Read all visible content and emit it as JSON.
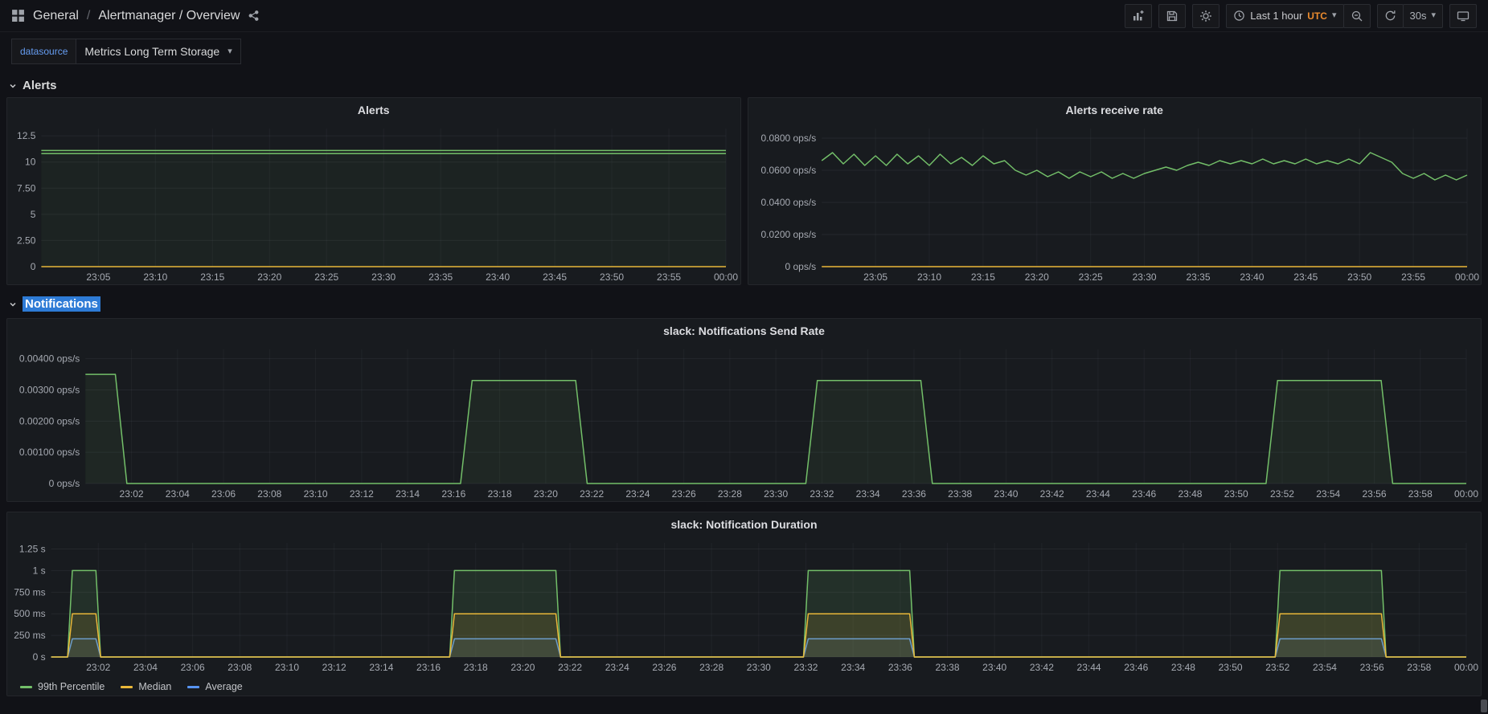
{
  "nav": {
    "breadcrumb": {
      "root": "General",
      "separator": "/",
      "current": "Alertmanager / Overview"
    },
    "time_range": {
      "label": "Last 1 hour",
      "timezone": "UTC"
    },
    "refresh_interval": "30s"
  },
  "submenu": {
    "variable_label": "datasource",
    "variable_value": "Metrics Long Term Storage"
  },
  "sections": {
    "alerts": "Alerts",
    "notifications": "Notifications"
  },
  "icons": {
    "caret_down": "▾"
  },
  "colors": {
    "green": "#73bf69",
    "yellow": "#eab839",
    "blue": "#5794f2",
    "selection_blue": "#2e7bd6",
    "variable_label_blue": "#669df2",
    "utc_orange": "#eb8b2e",
    "panel_bg": "#181b1f",
    "page_bg": "#111217"
  },
  "chart_data": [
    {
      "type": "line",
      "title": "Alerts",
      "x_range": [
        0,
        60
      ],
      "y_range": [
        0,
        13.2
      ],
      "y_ticks": [
        {
          "y": 0,
          "label": "0"
        },
        {
          "y": 2.5,
          "label": "2.50"
        },
        {
          "y": 5,
          "label": "5"
        },
        {
          "y": 7.5,
          "label": "7.50"
        },
        {
          "y": 10,
          "label": "10"
        },
        {
          "y": 12.5,
          "label": "12.5"
        }
      ],
      "x_ticks": [
        {
          "x": 5,
          "label": "23:05"
        },
        {
          "x": 10,
          "label": "23:10"
        },
        {
          "x": 15,
          "label": "23:15"
        },
        {
          "x": 20,
          "label": "23:20"
        },
        {
          "x": 25,
          "label": "23:25"
        },
        {
          "x": 30,
          "label": "23:30"
        },
        {
          "x": 35,
          "label": "23:35"
        },
        {
          "x": 40,
          "label": "23:40"
        },
        {
          "x": 45,
          "label": "23:45"
        },
        {
          "x": 50,
          "label": "23:50"
        },
        {
          "x": 55,
          "label": "23:55"
        },
        {
          "x": 60,
          "label": "00:00"
        }
      ],
      "series": [
        {
          "color": "#eab839",
          "fill": false,
          "points": [
            [
              0,
              0
            ],
            [
              60,
              0
            ]
          ]
        },
        {
          "color": "#73bf69",
          "fill": true,
          "fill_opacity": 0.05,
          "points": [
            [
              0,
              11.1
            ],
            [
              60,
              11.1
            ]
          ]
        },
        {
          "color": "#73bf69",
          "fill": false,
          "points": [
            [
              0,
              10.8
            ],
            [
              60,
              10.8
            ]
          ]
        }
      ]
    },
    {
      "type": "line",
      "title": "Alerts receive rate",
      "x_range": [
        0,
        60
      ],
      "y_range": [
        0,
        0.086
      ],
      "y_ticks": [
        {
          "y": 0,
          "label": "0 ops/s"
        },
        {
          "y": 0.02,
          "label": "0.0200 ops/s"
        },
        {
          "y": 0.04,
          "label": "0.0400 ops/s"
        },
        {
          "y": 0.06,
          "label": "0.0600 ops/s"
        },
        {
          "y": 0.08,
          "label": "0.0800 ops/s"
        }
      ],
      "x_ticks": [
        {
          "x": 5,
          "label": "23:05"
        },
        {
          "x": 10,
          "label": "23:10"
        },
        {
          "x": 15,
          "label": "23:15"
        },
        {
          "x": 20,
          "label": "23:20"
        },
        {
          "x": 25,
          "label": "23:25"
        },
        {
          "x": 30,
          "label": "23:30"
        },
        {
          "x": 35,
          "label": "23:35"
        },
        {
          "x": 40,
          "label": "23:40"
        },
        {
          "x": 45,
          "label": "23:45"
        },
        {
          "x": 50,
          "label": "23:50"
        },
        {
          "x": 55,
          "label": "23:55"
        },
        {
          "x": 60,
          "label": "00:00"
        }
      ],
      "series": [
        {
          "color": "#eab839",
          "fill": false,
          "points": [
            [
              0,
              0
            ],
            [
              60,
              0
            ]
          ]
        },
        {
          "color": "#73bf69",
          "fill": false,
          "points": [
            [
              0,
              0.066
            ],
            [
              1,
              0.071
            ],
            [
              2,
              0.064
            ],
            [
              3,
              0.07
            ],
            [
              4,
              0.063
            ],
            [
              5,
              0.069
            ],
            [
              6,
              0.063
            ],
            [
              7,
              0.07
            ],
            [
              8,
              0.064
            ],
            [
              9,
              0.069
            ],
            [
              10,
              0.063
            ],
            [
              11,
              0.07
            ],
            [
              12,
              0.064
            ],
            [
              13,
              0.068
            ],
            [
              14,
              0.063
            ],
            [
              15,
              0.069
            ],
            [
              16,
              0.064
            ],
            [
              17,
              0.066
            ],
            [
              18,
              0.06
            ],
            [
              19,
              0.057
            ],
            [
              20,
              0.06
            ],
            [
              21,
              0.056
            ],
            [
              22,
              0.059
            ],
            [
              23,
              0.055
            ],
            [
              24,
              0.059
            ],
            [
              25,
              0.056
            ],
            [
              26,
              0.059
            ],
            [
              27,
              0.055
            ],
            [
              28,
              0.058
            ],
            [
              29,
              0.055
            ],
            [
              30,
              0.058
            ],
            [
              31,
              0.06
            ],
            [
              32,
              0.062
            ],
            [
              33,
              0.06
            ],
            [
              34,
              0.063
            ],
            [
              35,
              0.065
            ],
            [
              36,
              0.063
            ],
            [
              37,
              0.066
            ],
            [
              38,
              0.064
            ],
            [
              39,
              0.066
            ],
            [
              40,
              0.064
            ],
            [
              41,
              0.067
            ],
            [
              42,
              0.064
            ],
            [
              43,
              0.066
            ],
            [
              44,
              0.064
            ],
            [
              45,
              0.067
            ],
            [
              46,
              0.064
            ],
            [
              47,
              0.066
            ],
            [
              48,
              0.064
            ],
            [
              49,
              0.067
            ],
            [
              50,
              0.064
            ],
            [
              51,
              0.071
            ],
            [
              52,
              0.068
            ],
            [
              53,
              0.065
            ],
            [
              54,
              0.058
            ],
            [
              55,
              0.055
            ],
            [
              56,
              0.058
            ],
            [
              57,
              0.054
            ],
            [
              58,
              0.057
            ],
            [
              59,
              0.054
            ],
            [
              60,
              0.057
            ]
          ]
        }
      ]
    },
    {
      "type": "line",
      "title": "slack: Notifications Send Rate",
      "x_range": [
        0,
        60
      ],
      "y_range": [
        0,
        0.0043
      ],
      "y_ticks": [
        {
          "y": 0,
          "label": "0 ops/s"
        },
        {
          "y": 0.001,
          "label": "0.00100 ops/s"
        },
        {
          "y": 0.002,
          "label": "0.00200 ops/s"
        },
        {
          "y": 0.003,
          "label": "0.00300 ops/s"
        },
        {
          "y": 0.004,
          "label": "0.00400 ops/s"
        }
      ],
      "x_ticks": [
        {
          "x": 2,
          "label": "23:02"
        },
        {
          "x": 4,
          "label": "23:04"
        },
        {
          "x": 6,
          "label": "23:06"
        },
        {
          "x": 8,
          "label": "23:08"
        },
        {
          "x": 10,
          "label": "23:10"
        },
        {
          "x": 12,
          "label": "23:12"
        },
        {
          "x": 14,
          "label": "23:14"
        },
        {
          "x": 16,
          "label": "23:16"
        },
        {
          "x": 18,
          "label": "23:18"
        },
        {
          "x": 20,
          "label": "23:20"
        },
        {
          "x": 22,
          "label": "23:22"
        },
        {
          "x": 24,
          "label": "23:24"
        },
        {
          "x": 26,
          "label": "23:26"
        },
        {
          "x": 28,
          "label": "23:28"
        },
        {
          "x": 30,
          "label": "23:30"
        },
        {
          "x": 32,
          "label": "23:32"
        },
        {
          "x": 34,
          "label": "23:34"
        },
        {
          "x": 36,
          "label": "23:36"
        },
        {
          "x": 38,
          "label": "23:38"
        },
        {
          "x": 40,
          "label": "23:40"
        },
        {
          "x": 42,
          "label": "23:42"
        },
        {
          "x": 44,
          "label": "23:44"
        },
        {
          "x": 46,
          "label": "23:46"
        },
        {
          "x": 48,
          "label": "23:48"
        },
        {
          "x": 50,
          "label": "23:50"
        },
        {
          "x": 52,
          "label": "23:52"
        },
        {
          "x": 54,
          "label": "23:54"
        },
        {
          "x": 56,
          "label": "23:56"
        },
        {
          "x": 58,
          "label": "23:58"
        },
        {
          "x": 60,
          "label": "00:00"
        }
      ],
      "series": [
        {
          "color": "#73bf69",
          "fill": true,
          "fill_opacity": 0.08,
          "points": [
            [
              0,
              0.0035
            ],
            [
              1.3,
              0.0035
            ],
            [
              1.8,
              0
            ],
            [
              16.3,
              0
            ],
            [
              16.8,
              0.0033
            ],
            [
              21.3,
              0.0033
            ],
            [
              21.8,
              0
            ],
            [
              31.3,
              0
            ],
            [
              31.8,
              0.0033
            ],
            [
              36.3,
              0.0033
            ],
            [
              36.8,
              0
            ],
            [
              51.3,
              0
            ],
            [
              51.8,
              0.0033
            ],
            [
              56.3,
              0.0033
            ],
            [
              56.8,
              0
            ],
            [
              60,
              0
            ]
          ]
        }
      ]
    },
    {
      "type": "line",
      "title": "slack: Notification Duration",
      "x_range": [
        0,
        60
      ],
      "y_range": [
        0,
        1.32
      ],
      "y_ticks": [
        {
          "y": 0,
          "label": "0 s"
        },
        {
          "y": 0.25,
          "label": "250 ms"
        },
        {
          "y": 0.5,
          "label": "500 ms"
        },
        {
          "y": 0.75,
          "label": "750 ms"
        },
        {
          "y": 1,
          "label": "1 s"
        },
        {
          "y": 1.25,
          "label": "1.25 s"
        }
      ],
      "x_ticks": [
        {
          "x": 2,
          "label": "23:02"
        },
        {
          "x": 4,
          "label": "23:04"
        },
        {
          "x": 6,
          "label": "23:06"
        },
        {
          "x": 8,
          "label": "23:08"
        },
        {
          "x": 10,
          "label": "23:10"
        },
        {
          "x": 12,
          "label": "23:12"
        },
        {
          "x": 14,
          "label": "23:14"
        },
        {
          "x": 16,
          "label": "23:16"
        },
        {
          "x": 18,
          "label": "23:18"
        },
        {
          "x": 20,
          "label": "23:20"
        },
        {
          "x": 22,
          "label": "23:22"
        },
        {
          "x": 24,
          "label": "23:24"
        },
        {
          "x": 26,
          "label": "23:26"
        },
        {
          "x": 28,
          "label": "23:28"
        },
        {
          "x": 30,
          "label": "23:30"
        },
        {
          "x": 32,
          "label": "23:32"
        },
        {
          "x": 34,
          "label": "23:34"
        },
        {
          "x": 36,
          "label": "23:36"
        },
        {
          "x": 38,
          "label": "23:38"
        },
        {
          "x": 40,
          "label": "23:40"
        },
        {
          "x": 42,
          "label": "23:42"
        },
        {
          "x": 44,
          "label": "23:44"
        },
        {
          "x": 46,
          "label": "23:46"
        },
        {
          "x": 48,
          "label": "23:48"
        },
        {
          "x": 50,
          "label": "23:50"
        },
        {
          "x": 52,
          "label": "23:52"
        },
        {
          "x": 54,
          "label": "23:54"
        },
        {
          "x": 56,
          "label": "23:56"
        },
        {
          "x": 58,
          "label": "23:58"
        },
        {
          "x": 60,
          "label": "00:00"
        }
      ],
      "series": [
        {
          "name": "Average",
          "color": "#5794f2",
          "fill": true,
          "fill_opacity": 0.1,
          "points": [
            [
              0,
              0
            ],
            [
              0.7,
              0
            ],
            [
              0.9,
              0.21
            ],
            [
              1.9,
              0.21
            ],
            [
              2.1,
              0
            ],
            [
              16.9,
              0
            ],
            [
              17.1,
              0.21
            ],
            [
              21.4,
              0.21
            ],
            [
              21.6,
              0
            ],
            [
              31.9,
              0
            ],
            [
              32.1,
              0.21
            ],
            [
              36.4,
              0.21
            ],
            [
              36.6,
              0
            ],
            [
              51.9,
              0
            ],
            [
              52.1,
              0.21
            ],
            [
              56.4,
              0.21
            ],
            [
              56.6,
              0
            ],
            [
              60,
              0
            ]
          ]
        },
        {
          "name": "99th Percentile",
          "color": "#73bf69",
          "fill": true,
          "fill_opacity": 0.13,
          "points": [
            [
              0,
              0
            ],
            [
              0.7,
              0
            ],
            [
              0.9,
              1.0
            ],
            [
              1.9,
              1.0
            ],
            [
              2.1,
              0
            ],
            [
              16.9,
              0
            ],
            [
              17.1,
              1.0
            ],
            [
              21.4,
              1.0
            ],
            [
              21.6,
              0
            ],
            [
              31.9,
              0
            ],
            [
              32.1,
              1.0
            ],
            [
              36.4,
              1.0
            ],
            [
              36.6,
              0
            ],
            [
              51.9,
              0
            ],
            [
              52.1,
              1.0
            ],
            [
              56.4,
              1.0
            ],
            [
              56.6,
              0
            ],
            [
              60,
              0
            ]
          ]
        },
        {
          "name": "Median",
          "color": "#eab839",
          "fill": true,
          "fill_opacity": 0.13,
          "points": [
            [
              0,
              0
            ],
            [
              0.7,
              0
            ],
            [
              0.9,
              0.5
            ],
            [
              1.9,
              0.5
            ],
            [
              2.1,
              0
            ],
            [
              16.9,
              0
            ],
            [
              17.1,
              0.5
            ],
            [
              21.4,
              0.5
            ],
            [
              21.6,
              0
            ],
            [
              31.9,
              0
            ],
            [
              32.1,
              0.5
            ],
            [
              36.4,
              0.5
            ],
            [
              36.6,
              0
            ],
            [
              51.9,
              0
            ],
            [
              52.1,
              0.5
            ],
            [
              56.4,
              0.5
            ],
            [
              56.6,
              0
            ],
            [
              60,
              0
            ]
          ]
        }
      ],
      "legend": [
        {
          "label": "99th Percentile",
          "color": "#73bf69"
        },
        {
          "label": "Median",
          "color": "#eab839"
        },
        {
          "label": "Average",
          "color": "#5794f2"
        }
      ],
      "legend_position": "bottom-left"
    }
  ]
}
